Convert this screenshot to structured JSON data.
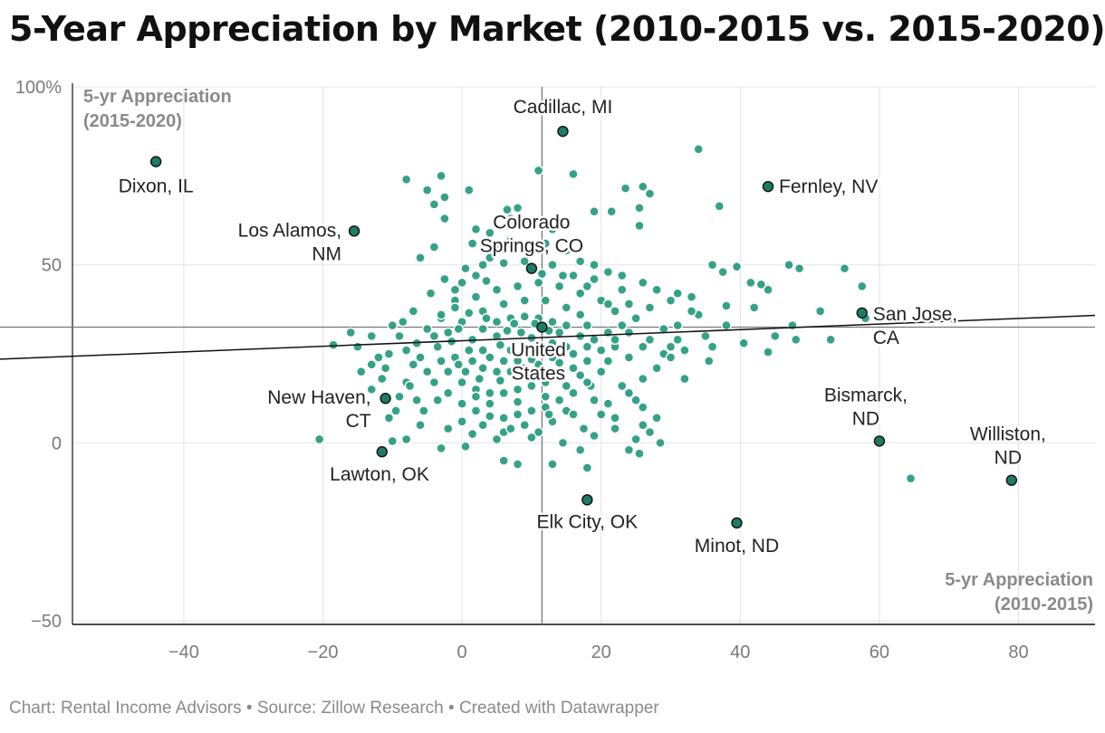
{
  "title": "5-Year Appreciation by Market (2010-2015 vs. 2015-2020)",
  "footer": "Chart: Rental Income Advisors • Source: Zillow Research • Created with Datawrapper",
  "colors": {
    "point": "#2a9d82",
    "highlight": "#1f7a66",
    "grid": "#e3e3e3",
    "axis": "#111111",
    "reference": "#777777",
    "trend": "#111111"
  },
  "chart_data": {
    "type": "scatter",
    "title": "5-Year Appreciation by Market (2010-2015 vs. 2015-2020)",
    "xlabel": [
      "5-yr Appreciation",
      "(2010-2015)"
    ],
    "ylabel": [
      "5-yr Appreciation",
      "(2015-2020)"
    ],
    "xlim": [
      -56,
      91
    ],
    "ylim": [
      -51,
      100
    ],
    "xticks": [
      -40,
      -20,
      0,
      20,
      40,
      60,
      80
    ],
    "xtick_labels": [
      "−40",
      "−20",
      "0",
      "20",
      "40",
      "60",
      "80"
    ],
    "yticks": [
      -50,
      0,
      50,
      100
    ],
    "ytick_labels": [
      "−50",
      "0",
      "50",
      "100%"
    ],
    "reference_lines": {
      "x": 11.5,
      "y": 32.5
    },
    "trend_line": {
      "x1": -56,
      "y1": 23.5,
      "x2": 91,
      "y2": 35.8
    },
    "highlighted": [
      {
        "name": "Cadillac, MI",
        "lines": [
          "Cadillac, MI"
        ],
        "x": 14.5,
        "y": 87.5
      },
      {
        "name": "Dixon, IL",
        "lines": [
          "Dixon, IL"
        ],
        "x": -44,
        "y": 79
      },
      {
        "name": "Fernley, NV",
        "lines": [
          "Fernley, NV"
        ],
        "x": 44,
        "y": 72
      },
      {
        "name": "Los Alamos, NM",
        "lines": [
          "Los Alamos,",
          "NM"
        ],
        "x": -15.5,
        "y": 59.5
      },
      {
        "name": "Colorado Springs, CO",
        "lines": [
          "Colorado",
          "Springs, CO"
        ],
        "x": 10,
        "y": 49
      },
      {
        "name": "San Jose, CA",
        "lines": [
          "San Jose,",
          "CA"
        ],
        "x": 57.5,
        "y": 36.5
      },
      {
        "name": "United States",
        "lines": [
          "United",
          "States"
        ],
        "x": 11.5,
        "y": 32.5
      },
      {
        "name": "New Haven, CT",
        "lines": [
          "New Haven,",
          "CT"
        ],
        "x": -11,
        "y": 12.5
      },
      {
        "name": "Bismarck, ND",
        "lines": [
          "Bismarck,",
          "ND"
        ],
        "x": 60,
        "y": 0.5
      },
      {
        "name": "Williston, ND",
        "lines": [
          "Williston,",
          "ND"
        ],
        "x": 79,
        "y": -10.5
      },
      {
        "name": "Lawton, OK",
        "lines": [
          "Lawton, OK"
        ],
        "x": -11.5,
        "y": -2.5
      },
      {
        "name": "Elk City, OK",
        "lines": [
          "Elk City, OK"
        ],
        "x": 18,
        "y": -16
      },
      {
        "name": "Minot, ND",
        "lines": [
          "Minot, ND"
        ],
        "x": 39.5,
        "y": -22.5
      }
    ],
    "points": [
      [
        -20.5,
        1
      ],
      [
        -8,
        74
      ],
      [
        -3,
        75
      ],
      [
        -5,
        71
      ],
      [
        -2.5,
        69
      ],
      [
        -4,
        67
      ],
      [
        1,
        71
      ],
      [
        -2.5,
        63
      ],
      [
        2,
        60
      ],
      [
        -6,
        52
      ],
      [
        -4,
        55
      ],
      [
        34,
        82.5
      ],
      [
        11,
        76.5
      ],
      [
        16,
        75.5
      ],
      [
        23.5,
        71.5
      ],
      [
        26,
        72
      ],
      [
        27,
        70
      ],
      [
        25.5,
        66
      ],
      [
        19,
        65
      ],
      [
        21.5,
        65
      ],
      [
        37,
        66.5
      ],
      [
        25.5,
        61
      ],
      [
        8,
        66
      ],
      [
        6.5,
        65.5
      ],
      [
        48.5,
        49
      ],
      [
        55,
        49
      ],
      [
        57.5,
        44
      ],
      [
        47,
        50
      ],
      [
        44,
        43
      ],
      [
        36,
        50
      ],
      [
        37.5,
        48
      ],
      [
        39.5,
        49.5
      ],
      [
        51.5,
        37
      ],
      [
        47.5,
        33
      ],
      [
        58,
        35
      ],
      [
        48,
        29
      ],
      [
        53,
        29
      ],
      [
        41.5,
        45
      ],
      [
        43,
        44.5
      ],
      [
        38,
        38.5
      ],
      [
        33,
        41
      ],
      [
        31,
        42
      ],
      [
        34,
        36
      ],
      [
        40.5,
        28
      ],
      [
        45,
        30
      ],
      [
        44,
        25.5
      ],
      [
        64.5,
        -10
      ],
      [
        35.5,
        23
      ],
      [
        32,
        18
      ],
      [
        29,
        25
      ],
      [
        30,
        27
      ],
      [
        28.5,
        0
      ],
      [
        25.5,
        -3
      ],
      [
        25,
        1
      ],
      [
        22,
        7
      ],
      [
        25,
        12
      ],
      [
        23,
        16
      ],
      [
        18,
        -7
      ],
      [
        13,
        -6
      ],
      [
        17,
        -2
      ],
      [
        14.5,
        0
      ],
      [
        17.5,
        4
      ],
      [
        20,
        8
      ],
      [
        19,
        12
      ],
      [
        18.5,
        16
      ],
      [
        15,
        9
      ],
      [
        8,
        -6
      ],
      [
        6,
        -5
      ],
      [
        0.5,
        -1
      ],
      [
        1.5,
        2.5
      ],
      [
        -3,
        -1.5
      ],
      [
        -6,
        5
      ],
      [
        -10,
        0.5
      ],
      [
        -8,
        1
      ],
      [
        -15,
        27
      ],
      [
        -16,
        31
      ],
      [
        -13,
        30
      ],
      [
        -18.5,
        27.5
      ],
      [
        -14.5,
        20
      ],
      [
        -13,
        15
      ],
      [
        -11,
        21
      ],
      [
        -9.5,
        9
      ],
      [
        -10.5,
        7
      ],
      [
        -8,
        17
      ],
      [
        -6.5,
        12
      ],
      [
        -7,
        22
      ],
      [
        -4,
        30
      ],
      [
        -3,
        35
      ],
      [
        -1,
        40
      ],
      [
        0,
        45
      ],
      [
        2,
        47
      ],
      [
        4,
        52
      ],
      [
        5,
        55
      ],
      [
        7,
        57
      ],
      [
        9,
        55
      ],
      [
        12,
        56
      ],
      [
        15,
        54
      ],
      [
        17,
        51
      ],
      [
        19,
        50
      ],
      [
        21,
        48
      ],
      [
        23,
        47
      ],
      [
        26,
        45
      ],
      [
        28,
        43
      ],
      [
        30,
        40
      ],
      [
        33,
        37
      ],
      [
        29,
        32
      ],
      [
        27,
        29
      ],
      [
        25,
        35
      ],
      [
        24,
        31
      ],
      [
        22,
        27
      ],
      [
        21,
        23
      ],
      [
        20,
        20
      ],
      [
        18,
        17
      ],
      [
        16,
        14
      ],
      [
        14,
        12
      ],
      [
        12,
        10
      ],
      [
        10,
        9
      ],
      [
        8,
        8
      ],
      [
        6,
        7
      ],
      [
        4,
        7.5
      ],
      [
        2,
        9
      ],
      [
        0,
        11
      ],
      [
        -2,
        14
      ],
      [
        -4,
        17
      ],
      [
        -5,
        20
      ],
      [
        -6,
        24
      ],
      [
        -6.5,
        28
      ],
      [
        -5,
        32
      ],
      [
        -3,
        36
      ],
      [
        -1,
        38
      ],
      [
        2,
        41
      ],
      [
        5,
        43
      ],
      [
        8,
        44
      ],
      [
        11,
        45
      ],
      [
        14,
        44
      ],
      [
        17,
        42
      ],
      [
        20,
        40
      ],
      [
        22,
        37
      ],
      [
        23,
        33
      ],
      [
        22,
        29
      ],
      [
        20,
        26
      ],
      [
        18,
        23
      ],
      [
        16,
        21
      ],
      [
        14,
        19
      ],
      [
        12,
        17
      ],
      [
        10,
        16
      ],
      [
        8,
        15
      ],
      [
        6,
        14
      ],
      [
        4,
        14
      ],
      [
        2,
        15
      ],
      [
        0,
        17
      ],
      [
        -2,
        20
      ],
      [
        -3,
        23
      ],
      [
        -3.5,
        27
      ],
      [
        -2,
        31
      ],
      [
        0,
        34
      ],
      [
        3,
        37
      ],
      [
        6,
        39
      ],
      [
        9,
        40
      ],
      [
        12,
        40
      ],
      [
        15,
        38
      ],
      [
        17,
        36
      ],
      [
        18,
        33
      ],
      [
        17,
        30
      ],
      [
        15,
        27
      ],
      [
        13,
        24
      ],
      [
        11,
        22
      ],
      [
        9,
        21
      ],
      [
        7,
        20
      ],
      [
        5,
        20
      ],
      [
        3,
        21
      ],
      [
        1.5,
        23
      ],
      [
        1,
        26
      ],
      [
        1.5,
        29
      ],
      [
        3,
        32
      ],
      [
        5,
        34
      ],
      [
        7,
        35
      ],
      [
        9,
        35.5
      ],
      [
        11,
        35
      ],
      [
        13,
        34
      ],
      [
        14,
        31
      ],
      [
        13,
        28
      ],
      [
        11,
        26
      ],
      [
        9,
        25.5
      ],
      [
        7,
        26
      ],
      [
        5.5,
        27.5
      ],
      [
        5,
        30
      ],
      [
        6.5,
        31.5
      ],
      [
        8.5,
        31
      ],
      [
        10,
        29.5
      ],
      [
        3,
        26
      ],
      [
        4,
        24
      ],
      [
        6,
        23
      ],
      [
        8,
        23
      ],
      [
        10,
        23.5
      ],
      [
        -8,
        26
      ],
      [
        -9,
        30
      ],
      [
        -10.5,
        25
      ],
      [
        -12,
        24
      ],
      [
        -11.5,
        18
      ],
      [
        -13,
        22
      ],
      [
        -9,
        13
      ],
      [
        -7.5,
        16
      ],
      [
        -2,
        4
      ],
      [
        0,
        6
      ],
      [
        3,
        5
      ],
      [
        6,
        3
      ],
      [
        9,
        5
      ],
      [
        11,
        3
      ],
      [
        13,
        6
      ],
      [
        16,
        8
      ],
      [
        19,
        2
      ],
      [
        21,
        11
      ],
      [
        24,
        14
      ],
      [
        26,
        18
      ],
      [
        28,
        21
      ],
      [
        30,
        24
      ],
      [
        32,
        26
      ],
      [
        26,
        10
      ],
      [
        28,
        7
      ],
      [
        27,
        3
      ],
      [
        -1,
        43
      ],
      [
        -2.5,
        46
      ],
      [
        0.5,
        49
      ],
      [
        3,
        50
      ],
      [
        6,
        50.5
      ],
      [
        9,
        51
      ],
      [
        13,
        50
      ],
      [
        16,
        47
      ],
      [
        19,
        46
      ],
      [
        23,
        43
      ],
      [
        27,
        38
      ],
      [
        31,
        33
      ],
      [
        4,
        59
      ],
      [
        7,
        63
      ],
      [
        10,
        62
      ],
      [
        13,
        60
      ],
      [
        -7,
        37
      ],
      [
        -8.5,
        34
      ],
      [
        -10,
        33
      ],
      [
        -4.5,
        42
      ],
      [
        1.5,
        56
      ],
      [
        3.5,
        45.5
      ],
      [
        11.5,
        47.5
      ],
      [
        14.5,
        47
      ],
      [
        18,
        44
      ],
      [
        21,
        39
      ],
      [
        24,
        24
      ],
      [
        26,
        27
      ],
      [
        2.5,
        18
      ],
      [
        0.5,
        20
      ],
      [
        -1,
        24
      ],
      [
        4,
        11
      ],
      [
        8,
        11.5
      ],
      [
        12,
        13
      ],
      [
        15,
        16
      ],
      [
        17,
        19
      ],
      [
        19,
        29
      ],
      [
        21,
        31
      ],
      [
        24,
        39
      ],
      [
        15,
        33
      ],
      [
        12.5,
        31.5
      ],
      [
        10.5,
        33.5
      ],
      [
        7.5,
        33.5
      ],
      [
        3.5,
        35
      ],
      [
        1,
        36.5
      ],
      [
        -0.5,
        32
      ],
      [
        -1.5,
        28.5
      ],
      [
        -0.5,
        22
      ],
      [
        2,
        13
      ],
      [
        5.5,
        17.5
      ],
      [
        9.5,
        18.5
      ],
      [
        12,
        20
      ],
      [
        14,
        22.5
      ],
      [
        16,
        25
      ],
      [
        18,
        27
      ],
      [
        -5.5,
        9
      ],
      [
        -3.5,
        12
      ],
      [
        5,
        1
      ],
      [
        7,
        4
      ],
      [
        10,
        1.5
      ],
      [
        12.5,
        8
      ],
      [
        22,
        4
      ],
      [
        24,
        -2
      ],
      [
        26,
        5
      ],
      [
        35,
        30
      ],
      [
        38,
        33
      ],
      [
        42,
        38
      ],
      [
        36,
        27
      ],
      [
        31,
        29
      ]
    ]
  }
}
